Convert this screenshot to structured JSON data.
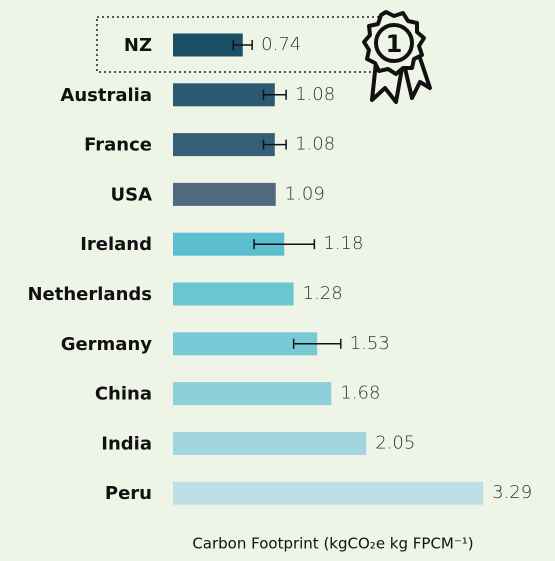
{
  "chart_data": {
    "type": "bar",
    "orientation": "horizontal",
    "x_label": "Carbon Footprint (kgCO₂e kg FPCM⁻¹)",
    "categories": [
      "NZ",
      "Australia",
      "France",
      "USA",
      "Ireland",
      "Netherlands",
      "Germany",
      "China",
      "India",
      "Peru"
    ],
    "values": [
      0.74,
      1.08,
      1.08,
      1.09,
      1.18,
      1.28,
      1.53,
      1.68,
      2.05,
      3.29
    ],
    "errors": [
      0.1,
      0.12,
      0.12,
      null,
      0.32,
      null,
      0.25,
      null,
      null,
      null
    ],
    "colors": [
      "#1b4f66",
      "#2a5a72",
      "#345f79",
      "#516a80",
      "#5bbfcf",
      "#6bc5d2",
      "#78c9d5",
      "#8ecfda",
      "#a1d6df",
      "#bde0e7"
    ],
    "xlim": [
      0,
      4.0
    ],
    "badge": "1"
  }
}
